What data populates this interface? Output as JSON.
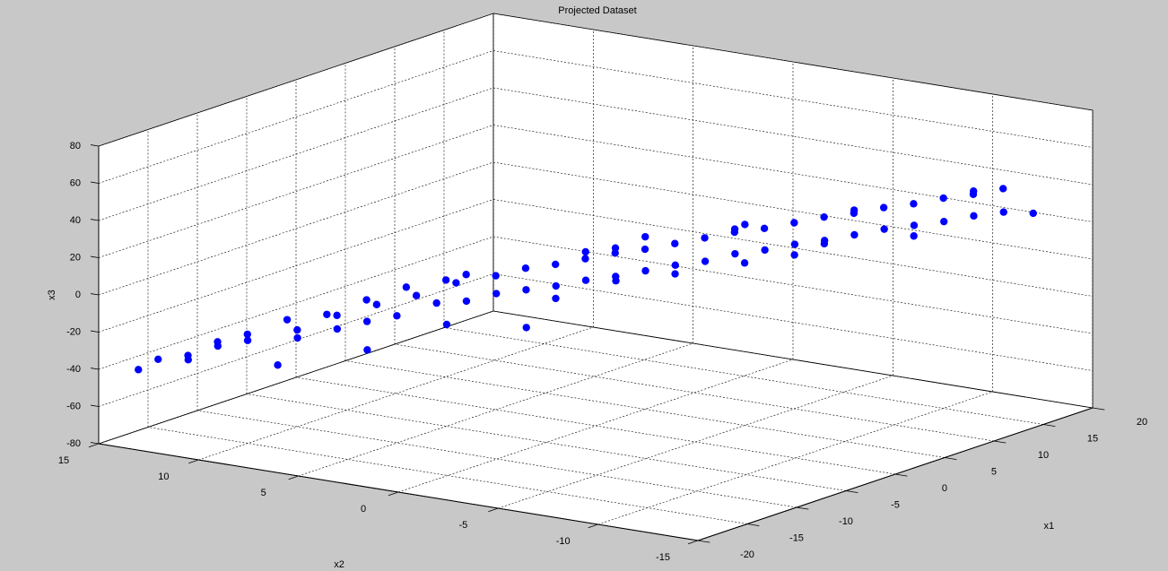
{
  "chart_data": {
    "type": "scatter3d",
    "title": "Projected Dataset",
    "x_label": "x1",
    "y_label": "x2",
    "z_label": "x3",
    "series": [
      {
        "color": "#0000ff",
        "x1": [
          -18,
          -16,
          -15,
          -17,
          -14,
          -12,
          -13,
          -11,
          -10,
          -12,
          -9,
          -8,
          -10,
          -7,
          -6,
          -9,
          -5,
          -4,
          -8,
          -3,
          -6,
          -2,
          -5,
          -1,
          -4,
          0,
          -3,
          1,
          -2,
          2,
          -1,
          3,
          0,
          4,
          1,
          5,
          2,
          6,
          3,
          7,
          4,
          8,
          5,
          9,
          6,
          10,
          7,
          11,
          8,
          12,
          9,
          13,
          10,
          14,
          11,
          15,
          12,
          16,
          13,
          17,
          -7,
          -3,
          0,
          2,
          4,
          6,
          8,
          10,
          -11,
          -5,
          3,
          12,
          14,
          -14,
          1,
          5,
          9,
          16,
          -2,
          7
        ],
        "x2": [
          14,
          14,
          13,
          12,
          12,
          13,
          11,
          12,
          10,
          9,
          11,
          9,
          8,
          10,
          8,
          7,
          9,
          7,
          6,
          8,
          5,
          6,
          4,
          7,
          3,
          5,
          2,
          4,
          1,
          3,
          0,
          2,
          -1,
          1,
          -2,
          0,
          -3,
          -1,
          -4,
          -2,
          -5,
          -3,
          -6,
          -4,
          -7,
          -5,
          -8,
          -6,
          -9,
          -7,
          -10,
          -8,
          -11,
          -9,
          -12,
          -10,
          -13,
          -11,
          -14,
          -12,
          4,
          5,
          2,
          0,
          -2,
          -4,
          -6,
          -8,
          6,
          1,
          -1,
          -10,
          -12,
          9,
          1,
          -5,
          -7,
          -14,
          -2,
          -4
        ],
        "x3": [
          -42,
          -40,
          -38,
          -35,
          -33,
          -36,
          -30,
          -32,
          -28,
          -27,
          -26,
          -22,
          -24,
          -25,
          -18,
          -20,
          -19,
          -15,
          -17,
          -14,
          -12,
          -10,
          -11,
          -12,
          -7,
          -8,
          -5,
          -4,
          -3,
          -2,
          0,
          1,
          2,
          4,
          5,
          6,
          8,
          9,
          10,
          12,
          14,
          15,
          16,
          17,
          19,
          20,
          21,
          23,
          24,
          25,
          27,
          28,
          29,
          30,
          31,
          33,
          34,
          35,
          36,
          38,
          -20,
          -2,
          -15,
          12,
          -2,
          22,
          8,
          32,
          -30,
          -20,
          18,
          18,
          42,
          -38,
          10,
          28,
          14,
          30,
          5,
          2
        ]
      }
    ],
    "xlim": [
      -20,
      20
    ],
    "xticks": [
      -20,
      -15,
      -10,
      -5,
      0,
      5,
      10,
      15,
      20
    ],
    "ylim": [
      -15,
      15
    ],
    "yticks": [
      -15,
      -10,
      -5,
      0,
      5,
      10,
      15
    ],
    "zlim": [
      -80,
      80
    ],
    "zticks": [
      -80,
      -60,
      -40,
      -20,
      0,
      20,
      40,
      60,
      80
    ],
    "grid": true
  }
}
